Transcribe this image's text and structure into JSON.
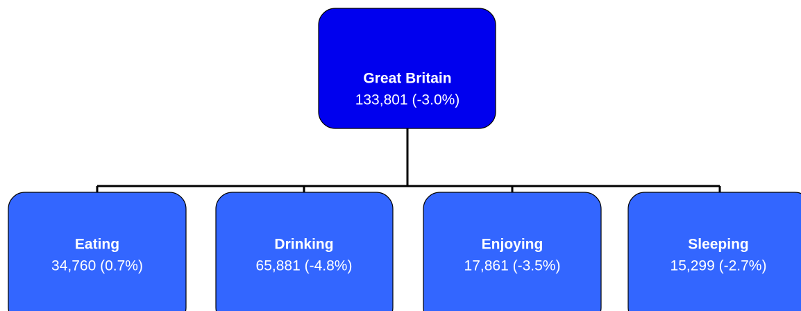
{
  "root": {
    "label": "Great Britain",
    "detail": "133,801 (-3.0%)"
  },
  "children": [
    {
      "label": "Eating",
      "detail": "34,760 (0.7%)"
    },
    {
      "label": "Drinking",
      "detail": "65,881 (-4.8%)"
    },
    {
      "label": "Enjoying",
      "detail": "17,861 (-3.5%)"
    },
    {
      "label": "Sleeping",
      "detail": "15,299 (-2.7%)"
    }
  ]
}
